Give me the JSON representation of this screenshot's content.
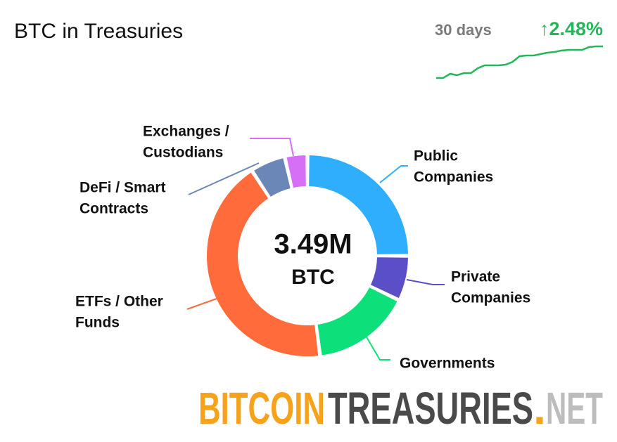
{
  "header": {
    "title": "BTC in Treasuries",
    "period": "30 days",
    "change": "↑2.48%"
  },
  "sparkline": {
    "type": "line",
    "color": "#22b85a",
    "values": [
      0,
      0,
      6,
      4,
      7,
      7,
      14,
      18,
      18,
      18,
      19,
      23,
      31,
      32,
      32,
      34,
      36,
      37,
      39,
      40,
      40,
      40,
      44,
      45,
      45
    ]
  },
  "chart_data": {
    "type": "donut",
    "center_value": "3.49M",
    "center_unit": "BTC",
    "categories": [
      [
        "Public",
        "Companies"
      ],
      [
        "Private",
        "Companies"
      ],
      [
        "Governments"
      ],
      [
        "ETFs / Other",
        "Funds"
      ],
      [
        "DeFi / Smart",
        "Contracts"
      ],
      [
        "Exchanges /",
        "Custodians"
      ]
    ],
    "values": [
      25,
      7.2,
      15.8,
      42.8,
      5.6,
      3.6
    ],
    "colors": [
      "#2eaefc",
      "#5b4fc7",
      "#0de07a",
      "#ff6b3a",
      "#6b87b8",
      "#d66ff5"
    ]
  },
  "logo": {
    "parts": [
      "BITCOIN",
      "TREASURIES",
      ".",
      "NET"
    ]
  }
}
